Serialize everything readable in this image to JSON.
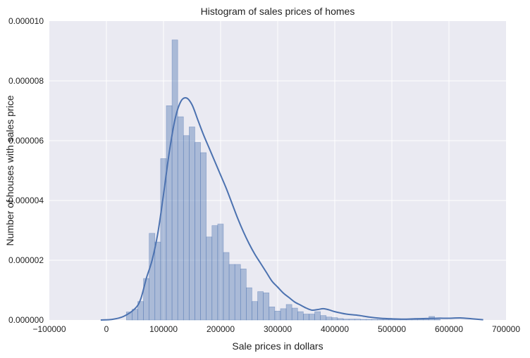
{
  "chart_data": {
    "type": "bar",
    "title": "Histogram of sales prices of homes",
    "xlabel": "Sale prices in dollars",
    "ylabel": "Number of houses with sales price",
    "xlim": [
      -100000,
      700000
    ],
    "ylim": [
      0,
      1e-05
    ],
    "x_ticks": [
      -100000,
      0,
      100000,
      200000,
      300000,
      400000,
      500000,
      600000,
      700000
    ],
    "x_tick_labels": [
      "−100000",
      "0",
      "100000",
      "200000",
      "300000",
      "400000",
      "500000",
      "600000",
      "700000"
    ],
    "y_ticks": [
      0,
      2e-06,
      4e-06,
      6e-06,
      8e-06,
      1e-05
    ],
    "y_tick_labels": [
      "0.000000",
      "0.000002",
      "0.000004",
      "0.000006",
      "0.000008",
      "0.000010"
    ],
    "grid": true,
    "legend": "none",
    "colors": {
      "background": "#eaeaf2",
      "grid": "#ffffff",
      "bar_fill": "#4c72b0",
      "bar_opacity": 0.4,
      "bar_stroke": "#4c72b0",
      "kde_line": "#4c72b0"
    },
    "histogram": {
      "bin_start": 34900,
      "bin_width": 10000,
      "densities": [
        2.7e-07,
        3.6e-07,
        6.2e-07,
        1.39e-06,
        2.9e-06,
        2.61e-06,
        5.4e-06,
        7.17e-06,
        9.37e-06,
        6.8e-06,
        6.17e-06,
        6.46e-06,
        5.94e-06,
        5.6e-06,
        2.78e-06,
        3.16e-06,
        3.21e-06,
        2.26e-06,
        1.86e-06,
        1.86e-06,
        1.71e-06,
        1.08e-06,
        6.2e-07,
        9.5e-07,
        9.1e-07,
        4.4e-07,
        3e-07,
        3.8e-07,
        5.2e-07,
        4e-07,
        2.8e-07,
        2e-07,
        2e-07,
        2.8e-07,
        1.5e-07,
        1e-07,
        8e-08,
        5e-08,
        3e-08,
        3e-08,
        3e-08,
        2e-08,
        2e-08,
        2e-08,
        2e-08,
        2e-08,
        2e-08,
        2e-08,
        2e-08,
        2e-08,
        2e-08,
        2e-08,
        2e-08,
        1.2e-07,
        2e-08
      ]
    },
    "kde": {
      "x": [
        -10000,
        10000,
        30000,
        50000,
        60000,
        70000,
        80000,
        90000,
        100000,
        110000,
        120000,
        130000,
        140000,
        150000,
        160000,
        170000,
        180000,
        190000,
        200000,
        210000,
        220000,
        230000,
        240000,
        250000,
        260000,
        270000,
        280000,
        290000,
        300000,
        310000,
        320000,
        330000,
        340000,
        350000,
        360000,
        370000,
        380000,
        390000,
        400000,
        420000,
        440000,
        460000,
        480000,
        500000,
        520000,
        540000,
        560000,
        580000,
        600000,
        620000,
        640000,
        660000
      ],
      "y": [
        0,
        2e-08,
        1.2e-07,
        3.8e-07,
        7e-07,
        1.4e-06,
        2e-06,
        2.9e-06,
        4.2e-06,
        5.6e-06,
        6.7e-06,
        7.3e-06,
        7.43e-06,
        7.2e-06,
        6.7e-06,
        6.2e-06,
        5.75e-06,
        5.3e-06,
        4.85e-06,
        4.4e-06,
        3.9e-06,
        3.4e-06,
        2.95e-06,
        2.55e-06,
        2.2e-06,
        1.9e-06,
        1.6e-06,
        1.3e-06,
        1.1e-06,
        9e-07,
        7.5e-07,
        6e-07,
        5e-07,
        4e-07,
        3.3e-07,
        3.5e-07,
        3.8e-07,
        3.4e-07,
        2.8e-07,
        2e-07,
        1.6e-07,
        1e-07,
        6e-08,
        4e-08,
        3e-08,
        4e-08,
        5e-08,
        6e-08,
        6e-08,
        7e-08,
        4e-08,
        1e-08
      ]
    }
  }
}
